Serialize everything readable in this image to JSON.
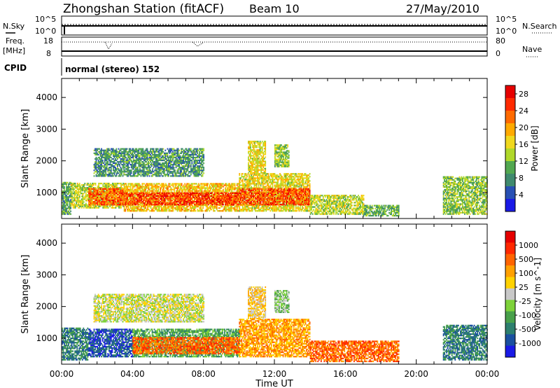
{
  "header": {
    "station": "Zhongshan Station (fitACF)",
    "beam": "Beam 10",
    "date": "27/May/2010"
  },
  "aux_panels": {
    "nsky_label": "N.Sky",
    "nsearch_label": "N.Search",
    "nsky_ticks": [
      "10^5",
      "10^0"
    ],
    "freq_label_1": "Freq.",
    "freq_label_2": "[MHz]",
    "freq_ticks": [
      "18",
      "8"
    ],
    "nave_label": "Nave",
    "nave_ticks": [
      "80",
      "0"
    ],
    "cpid_label": "CPID",
    "cpid_text": "normal (stereo) 152"
  },
  "x_axis": {
    "label": "Time UT",
    "ticks": [
      "00:00",
      "04:00",
      "08:00",
      "12:00",
      "16:00",
      "20:00",
      "00:00"
    ]
  },
  "colors": {
    "power": [
      "#1a1ae6",
      "#2850b4",
      "#3f8a6e",
      "#52a850",
      "#b0d82a",
      "#f0d81e",
      "#ffaa00",
      "#ff6a00",
      "#ff2a00",
      "#e60000"
    ],
    "velocity": [
      "#1a1ae6",
      "#1a50a0",
      "#2d7f6e",
      "#48a04a",
      "#7ed23a",
      "#c8c8c8",
      "#ffd200",
      "#ffa000",
      "#ff6400",
      "#ff2800",
      "#e60000"
    ]
  },
  "chart_data": [
    {
      "type": "heatmap",
      "title": "Power",
      "xlabel": "Time UT",
      "ylabel": "Slant Range [km]",
      "xlim": [
        0,
        24
      ],
      "ylim": [
        180,
        4600
      ],
      "yticks": [
        "1000",
        "2000",
        "3000",
        "4000"
      ],
      "colorbar": {
        "label": "Power [dB]",
        "ticks": [
          "4",
          "8",
          "12",
          "16",
          "20",
          "24",
          "28"
        ],
        "range": [
          0,
          30
        ]
      },
      "regions": [
        {
          "t0": 0.0,
          "t1": 0.5,
          "r0": 300,
          "r1": 1300,
          "level": 9
        },
        {
          "t0": 0.5,
          "t1": 3.5,
          "r0": 500,
          "r1": 1300,
          "level": 14
        },
        {
          "t0": 1.5,
          "t1": 3.5,
          "r0": 600,
          "r1": 1100,
          "level": 24
        },
        {
          "t0": 3.5,
          "t1": 10.0,
          "r0": 400,
          "r1": 1300,
          "level": 18
        },
        {
          "t0": 3.5,
          "t1": 10.0,
          "r0": 600,
          "r1": 1000,
          "level": 26
        },
        {
          "t0": 10.0,
          "t1": 14.0,
          "r0": 400,
          "r1": 1600,
          "level": 16
        },
        {
          "t0": 10.0,
          "t1": 14.0,
          "r0": 600,
          "r1": 1100,
          "level": 25
        },
        {
          "t0": 14.0,
          "t1": 17.0,
          "r0": 300,
          "r1": 900,
          "level": 14
        },
        {
          "t0": 17.0,
          "t1": 19.0,
          "r0": 250,
          "r1": 600,
          "level": 10
        },
        {
          "t0": 21.5,
          "t1": 24.0,
          "r0": 300,
          "r1": 1500,
          "level": 12
        },
        {
          "t0": 1.8,
          "t1": 8.0,
          "r0": 1500,
          "r1": 2400,
          "level": 8
        },
        {
          "t0": 10.5,
          "t1": 11.5,
          "r0": 1600,
          "r1": 2600,
          "level": 16
        },
        {
          "t0": 12.0,
          "t1": 12.8,
          "r0": 1800,
          "r1": 2500,
          "level": 13
        }
      ]
    },
    {
      "type": "heatmap",
      "title": "Velocity",
      "xlabel": "Time UT",
      "ylabel": "Slant Range [km]",
      "xlim": [
        0,
        24
      ],
      "ylim": [
        180,
        4600
      ],
      "yticks": [
        "1000",
        "2000",
        "3000",
        "4000"
      ],
      "colorbar": {
        "label": "Velocity [m s^-1]",
        "ticks": [
          "1000",
          "500",
          "100",
          "25",
          "-25",
          "-100",
          "-500",
          "-1000"
        ]
      },
      "regions": [
        {
          "t0": 0.0,
          "t1": 1.5,
          "r0": 300,
          "r1": 1300,
          "level": 2
        },
        {
          "t0": 1.5,
          "t1": 4.0,
          "r0": 400,
          "r1": 1300,
          "level": 1
        },
        {
          "t0": 4.0,
          "t1": 10.0,
          "r0": 400,
          "r1": 1300,
          "level": 3
        },
        {
          "t0": 4.0,
          "t1": 10.0,
          "r0": 500,
          "r1": 1000,
          "level": 8
        },
        {
          "t0": 10.0,
          "t1": 14.0,
          "r0": 400,
          "r1": 1600,
          "level": 7
        },
        {
          "t0": 14.0,
          "t1": 19.0,
          "r0": 250,
          "r1": 900,
          "level": 8
        },
        {
          "t0": 21.5,
          "t1": 24.0,
          "r0": 300,
          "r1": 1400,
          "level": 2
        },
        {
          "t0": 1.8,
          "t1": 8.0,
          "r0": 1500,
          "r1": 2400,
          "level": 5
        },
        {
          "t0": 10.5,
          "t1": 11.5,
          "r0": 1600,
          "r1": 2600,
          "level": 6
        },
        {
          "t0": 12.0,
          "t1": 12.8,
          "r0": 1800,
          "r1": 2500,
          "level": 4
        }
      ]
    }
  ]
}
